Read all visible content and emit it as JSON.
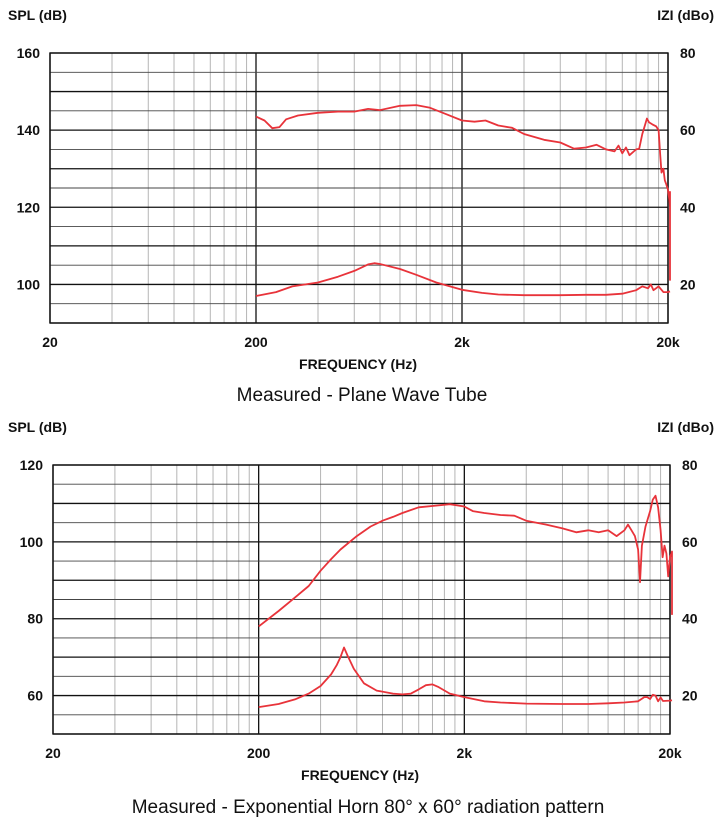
{
  "chart_data": [
    {
      "type": "line",
      "caption": "Measured - Plane Wave Tube",
      "xlabel": "FREQUENCY (Hz)",
      "ylabel_left": "SPL (dB)",
      "ylabel_right": "IZI (dBo)",
      "x_scale": "log",
      "xlim": [
        20,
        20000
      ],
      "ylim": [
        90,
        160
      ],
      "y2lim": [
        10,
        80
      ],
      "x_ticks": [
        {
          "v": 20,
          "label": "20"
        },
        {
          "v": 200,
          "label": "200"
        },
        {
          "v": 2000,
          "label": "2k"
        },
        {
          "v": 20000,
          "label": "20k"
        }
      ],
      "y_ticks": [
        {
          "v": 100,
          "label": "100"
        },
        {
          "v": 120,
          "label": "120"
        },
        {
          "v": 140,
          "label": "140"
        },
        {
          "v": 160,
          "label": "160"
        }
      ],
      "y2_ticks": [
        {
          "v": 20,
          "label": "20"
        },
        {
          "v": 40,
          "label": "40"
        },
        {
          "v": 60,
          "label": "60"
        },
        {
          "v": 80,
          "label": "80"
        }
      ],
      "grid": true,
      "line_color": "#e8333a",
      "series": [
        {
          "axis": "left",
          "points": [
            [
              200,
              143.5
            ],
            [
              220,
              142.5
            ],
            [
              240,
              140.5
            ],
            [
              260,
              140.8
            ],
            [
              280,
              142.8
            ],
            [
              320,
              143.8
            ],
            [
              400,
              144.5
            ],
            [
              500,
              144.8
            ],
            [
              600,
              144.8
            ],
            [
              700,
              145.5
            ],
            [
              800,
              145.2
            ],
            [
              1000,
              146.3
            ],
            [
              1200,
              146.5
            ],
            [
              1400,
              145.8
            ],
            [
              1700,
              144
            ],
            [
              2000,
              142.5
            ],
            [
              2300,
              142.2
            ],
            [
              2600,
              142.5
            ],
            [
              3000,
              141.2
            ],
            [
              3500,
              140.6
            ],
            [
              4000,
              139
            ],
            [
              5000,
              137.5
            ],
            [
              6000,
              136.8
            ],
            [
              7000,
              135.2
            ],
            [
              8000,
              135.5
            ],
            [
              9000,
              136.2
            ],
            [
              10000,
              135
            ],
            [
              11000,
              134.5
            ],
            [
              11500,
              136
            ],
            [
              12000,
              134
            ],
            [
              12500,
              135.5
            ],
            [
              13000,
              133.5
            ],
            [
              14000,
              135
            ],
            [
              14500,
              135.2
            ],
            [
              15000,
              139
            ],
            [
              15500,
              141.5
            ],
            [
              15800,
              143
            ],
            [
              16200,
              142
            ],
            [
              16800,
              141.5
            ],
            [
              17500,
              141
            ],
            [
              18000,
              140
            ],
            [
              18300,
              134
            ],
            [
              18600,
              129
            ],
            [
              19000,
              130
            ],
            [
              19300,
              127
            ],
            [
              19600,
              126
            ],
            [
              20000,
              124.5
            ],
            [
              20400,
              121
            ],
            [
              20800,
              120
            ],
            [
              21300,
              123
            ],
            [
              21800,
              124
            ],
            [
              22300,
              112
            ],
            [
              22800,
              101
            ]
          ]
        },
        {
          "axis": "right",
          "points": [
            [
              200,
              17
            ],
            [
              250,
              18
            ],
            [
              300,
              19.5
            ],
            [
              400,
              20.5
            ],
            [
              500,
              22
            ],
            [
              600,
              23.5
            ],
            [
              700,
              25.2
            ],
            [
              750,
              25.5
            ],
            [
              800,
              25.3
            ],
            [
              1000,
              24
            ],
            [
              1200,
              22.5
            ],
            [
              1500,
              20.5
            ],
            [
              2000,
              18.6
            ],
            [
              2500,
              17.8
            ],
            [
              3000,
              17.4
            ],
            [
              4000,
              17.2
            ],
            [
              6000,
              17.2
            ],
            [
              8000,
              17.3
            ],
            [
              10000,
              17.3
            ],
            [
              12000,
              17.6
            ],
            [
              14000,
              18.5
            ],
            [
              15000,
              19.5
            ],
            [
              16000,
              19
            ],
            [
              16500,
              20
            ],
            [
              17000,
              18.5
            ],
            [
              18000,
              19.5
            ],
            [
              19000,
              18
            ],
            [
              20000,
              18
            ],
            [
              21000,
              18.2
            ],
            [
              22500,
              18.2
            ]
          ]
        }
      ]
    },
    {
      "type": "line",
      "caption": "Measured - Exponential Horn 80° x 60° radiation pattern",
      "xlabel": "FREQUENCY (Hz)",
      "ylabel_left": "SPL (dB)",
      "ylabel_right": "IZI (dBo)",
      "x_scale": "log",
      "xlim": [
        20,
        20000
      ],
      "ylim": [
        50,
        120
      ],
      "y2lim": [
        10,
        80
      ],
      "x_ticks": [
        {
          "v": 20,
          "label": "20"
        },
        {
          "v": 200,
          "label": "200"
        },
        {
          "v": 2000,
          "label": "2k"
        },
        {
          "v": 20000,
          "label": "20k"
        }
      ],
      "y_ticks": [
        {
          "v": 60,
          "label": "60"
        },
        {
          "v": 80,
          "label": "80"
        },
        {
          "v": 100,
          "label": "100"
        },
        {
          "v": 120,
          "label": "120"
        }
      ],
      "y2_ticks": [
        {
          "v": 20,
          "label": "20"
        },
        {
          "v": 40,
          "label": "40"
        },
        {
          "v": 60,
          "label": "60"
        },
        {
          "v": 80,
          "label": "80"
        }
      ],
      "grid": true,
      "line_color": "#e8333a",
      "series": [
        {
          "axis": "left",
          "points": [
            [
              200,
              78
            ],
            [
              250,
              82
            ],
            [
              300,
              85.5
            ],
            [
              350,
              88.5
            ],
            [
              400,
              92.5
            ],
            [
              450,
              95.5
            ],
            [
              500,
              98
            ],
            [
              600,
              101.5
            ],
            [
              700,
              104
            ],
            [
              800,
              105.5
            ],
            [
              900,
              106.5
            ],
            [
              1000,
              107.5
            ],
            [
              1200,
              109
            ],
            [
              1500,
              109.5
            ],
            [
              1700,
              109.8
            ],
            [
              2000,
              109.2
            ],
            [
              2200,
              108
            ],
            [
              2500,
              107.5
            ],
            [
              3000,
              107
            ],
            [
              3500,
              106.8
            ],
            [
              4000,
              105.5
            ],
            [
              5000,
              104.5
            ],
            [
              6000,
              103.5
            ],
            [
              7000,
              102.5
            ],
            [
              8000,
              103
            ],
            [
              9000,
              102.5
            ],
            [
              10000,
              103
            ],
            [
              11000,
              101.5
            ],
            [
              12000,
              103
            ],
            [
              12500,
              104.5
            ],
            [
              13000,
              103
            ],
            [
              13500,
              101.5
            ],
            [
              14000,
              98
            ],
            [
              14300,
              89.5
            ],
            [
              14600,
              99
            ],
            [
              15200,
              104
            ],
            [
              16000,
              108
            ],
            [
              16500,
              111
            ],
            [
              17000,
              112
            ],
            [
              17500,
              109
            ],
            [
              18000,
              103
            ],
            [
              18400,
              96
            ],
            [
              18800,
              99
            ],
            [
              19200,
              97
            ],
            [
              19600,
              91
            ],
            [
              20000,
              96
            ],
            [
              20500,
              97.5
            ],
            [
              21000,
              97.5
            ],
            [
              21500,
              96
            ],
            [
              22000,
              94
            ],
            [
              22500,
              88
            ],
            [
              23000,
              81
            ]
          ]
        },
        {
          "axis": "right",
          "points": [
            [
              200,
              17
            ],
            [
              250,
              17.8
            ],
            [
              300,
              19
            ],
            [
              350,
              20.5
            ],
            [
              400,
              22.5
            ],
            [
              450,
              25.5
            ],
            [
              480,
              28
            ],
            [
              500,
              30
            ],
            [
              520,
              32.5
            ],
            [
              540,
              30.5
            ],
            [
              580,
              27
            ],
            [
              650,
              23.2
            ],
            [
              750,
              21.3
            ],
            [
              900,
              20.5
            ],
            [
              1000,
              20.3
            ],
            [
              1100,
              20.5
            ],
            [
              1200,
              21.6
            ],
            [
              1300,
              22.7
            ],
            [
              1400,
              22.9
            ],
            [
              1500,
              22.2
            ],
            [
              1700,
              20.5
            ],
            [
              2000,
              19.6
            ],
            [
              2500,
              18.5
            ],
            [
              3000,
              18.2
            ],
            [
              4000,
              17.9
            ],
            [
              6000,
              17.8
            ],
            [
              8000,
              17.8
            ],
            [
              10000,
              18
            ],
            [
              12000,
              18.2
            ],
            [
              14000,
              18.5
            ],
            [
              15000,
              19.6
            ],
            [
              15500,
              19.6
            ],
            [
              16000,
              19.1
            ],
            [
              16500,
              20.2
            ],
            [
              17000,
              20
            ],
            [
              17500,
              18.5
            ],
            [
              18000,
              19.5
            ],
            [
              18500,
              18.6
            ],
            [
              20000,
              18.7
            ],
            [
              22000,
              18.8
            ],
            [
              23000,
              18.8
            ]
          ]
        }
      ]
    }
  ]
}
